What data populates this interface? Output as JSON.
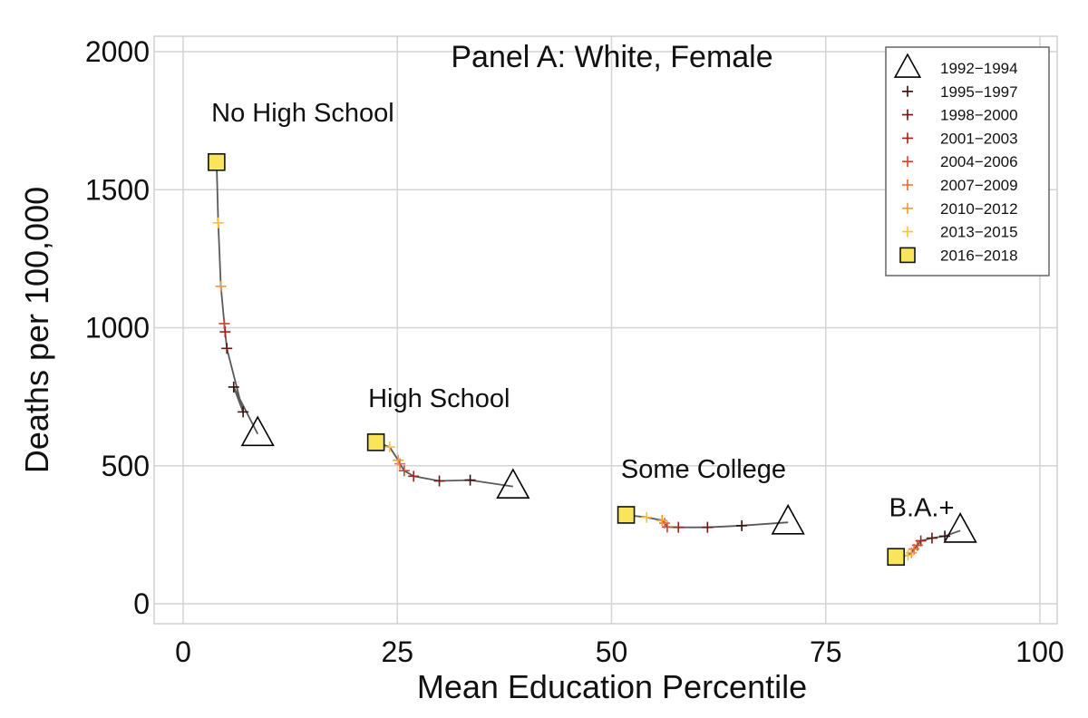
{
  "chart_data": {
    "type": "scatter",
    "title": "Panel A: White, Female",
    "xlabel": "Mean Education Percentile",
    "ylabel": "Deaths per 100,000",
    "xlim": [
      0,
      100
    ],
    "ylim": [
      0,
      2000
    ],
    "xticks": [
      "0",
      "25",
      "50",
      "75",
      "100"
    ],
    "yticks": [
      "0",
      "500",
      "1000",
      "1500",
      "2000"
    ],
    "grid": true,
    "legend_position": "top-right",
    "periods": [
      {
        "name": "1992−1994",
        "marker": "triangle",
        "color": "#000000"
      },
      {
        "name": "1995−1997",
        "marker": "plus",
        "color": "#3b0f0f"
      },
      {
        "name": "1998−2000",
        "marker": "plus",
        "color": "#6b1616"
      },
      {
        "name": "2001−2003",
        "marker": "plus",
        "color": "#a3231c"
      },
      {
        "name": "2004−2006",
        "marker": "plus",
        "color": "#d8422a"
      },
      {
        "name": "2007−2009",
        "marker": "plus",
        "color": "#ee6a2e"
      },
      {
        "name": "2010−2012",
        "marker": "plus",
        "color": "#f59a30"
      },
      {
        "name": "2013−2015",
        "marker": "plus",
        "color": "#f8c234"
      },
      {
        "name": "2016−2018",
        "marker": "square",
        "color": "#f9e55a"
      }
    ],
    "groups": [
      {
        "label": "No High School",
        "label_at": [
          3.3,
          1780
        ],
        "points": [
          {
            "period": 0,
            "x": 8.7,
            "y": 615
          },
          {
            "period": 1,
            "x": 7.0,
            "y": 695
          },
          {
            "period": 1,
            "x": 5.9,
            "y": 785
          },
          {
            "period": 2,
            "x": 5.1,
            "y": 925
          },
          {
            "period": 3,
            "x": 4.9,
            "y": 985
          },
          {
            "period": 4,
            "x": 4.8,
            "y": 1015
          },
          {
            "period": 6,
            "x": 4.4,
            "y": 1150
          },
          {
            "period": 7,
            "x": 4.1,
            "y": 1380
          },
          {
            "period": 8,
            "x": 3.9,
            "y": 1600
          }
        ]
      },
      {
        "label": "High School",
        "label_at": [
          21.6,
          745
        ],
        "points": [
          {
            "period": 0,
            "x": 38.5,
            "y": 425
          },
          {
            "period": 1,
            "x": 33.5,
            "y": 448
          },
          {
            "period": 2,
            "x": 29.9,
            "y": 445
          },
          {
            "period": 3,
            "x": 26.9,
            "y": 462
          },
          {
            "period": 4,
            "x": 25.8,
            "y": 482
          },
          {
            "period": 5,
            "x": 25.3,
            "y": 507
          },
          {
            "period": 6,
            "x": 25.1,
            "y": 520
          },
          {
            "period": 7,
            "x": 24.1,
            "y": 568
          },
          {
            "period": 8,
            "x": 22.5,
            "y": 585
          }
        ]
      },
      {
        "label": "Some College",
        "label_at": [
          51.1,
          490
        ],
        "points": [
          {
            "period": 0,
            "x": 70.6,
            "y": 295
          },
          {
            "period": 1,
            "x": 65.2,
            "y": 283
          },
          {
            "period": 2,
            "x": 61.2,
            "y": 277
          },
          {
            "period": 3,
            "x": 57.8,
            "y": 277
          },
          {
            "period": 4,
            "x": 56.5,
            "y": 278
          },
          {
            "period": 5,
            "x": 56.2,
            "y": 292
          },
          {
            "period": 6,
            "x": 55.9,
            "y": 302
          },
          {
            "period": 7,
            "x": 54.1,
            "y": 313
          },
          {
            "period": 8,
            "x": 51.7,
            "y": 322
          }
        ]
      },
      {
        "label": "B.A.+",
        "label_at": [
          82.4,
          350
        ],
        "points": [
          {
            "period": 0,
            "x": 90.7,
            "y": 265
          },
          {
            "period": 1,
            "x": 88.9,
            "y": 245
          },
          {
            "period": 2,
            "x": 87.4,
            "y": 238
          },
          {
            "period": 3,
            "x": 86.1,
            "y": 228
          },
          {
            "period": 4,
            "x": 85.7,
            "y": 212
          },
          {
            "period": 5,
            "x": 85.3,
            "y": 198
          },
          {
            "period": 6,
            "x": 85.0,
            "y": 185
          },
          {
            "period": 7,
            "x": 84.6,
            "y": 176
          },
          {
            "period": 8,
            "x": 83.2,
            "y": 170
          }
        ]
      }
    ]
  }
}
